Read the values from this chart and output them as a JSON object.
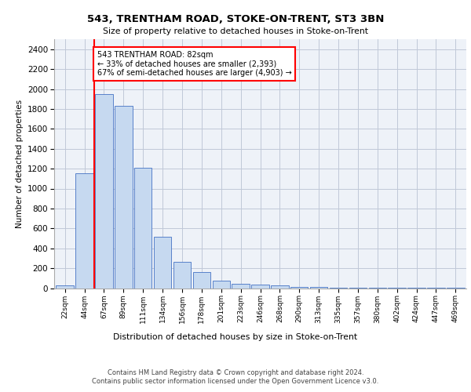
{
  "title": "543, TRENTHAM ROAD, STOKE-ON-TRENT, ST3 3BN",
  "subtitle": "Size of property relative to detached houses in Stoke-on-Trent",
  "xlabel": "Distribution of detached houses by size in Stoke-on-Trent",
  "ylabel": "Number of detached properties",
  "categories": [
    "22sqm",
    "44sqm",
    "67sqm",
    "89sqm",
    "111sqm",
    "134sqm",
    "156sqm",
    "178sqm",
    "201sqm",
    "223sqm",
    "246sqm",
    "268sqm",
    "290sqm",
    "313sqm",
    "335sqm",
    "357sqm",
    "380sqm",
    "402sqm",
    "424sqm",
    "447sqm",
    "469sqm"
  ],
  "values": [
    25,
    1150,
    1950,
    1830,
    1210,
    515,
    265,
    160,
    78,
    45,
    32,
    28,
    12,
    8,
    4,
    3,
    2,
    2,
    1,
    1,
    5
  ],
  "bar_color": "#c6d9f0",
  "bar_edge_color": "#4472c4",
  "vline_x": 1.5,
  "vline_color": "red",
  "annotation_text": "543 TRENTHAM ROAD: 82sqm\n← 33% of detached houses are smaller (2,393)\n67% of semi-detached houses are larger (4,903) →",
  "annotation_box_color": "white",
  "annotation_box_edge": "red",
  "ylim": [
    0,
    2500
  ],
  "yticks": [
    0,
    200,
    400,
    600,
    800,
    1000,
    1200,
    1400,
    1600,
    1800,
    2000,
    2200,
    2400
  ],
  "grid_color": "#c0c8d8",
  "bg_color": "#eef2f8",
  "footer1": "Contains HM Land Registry data © Crown copyright and database right 2024.",
  "footer2": "Contains public sector information licensed under the Open Government Licence v3.0."
}
